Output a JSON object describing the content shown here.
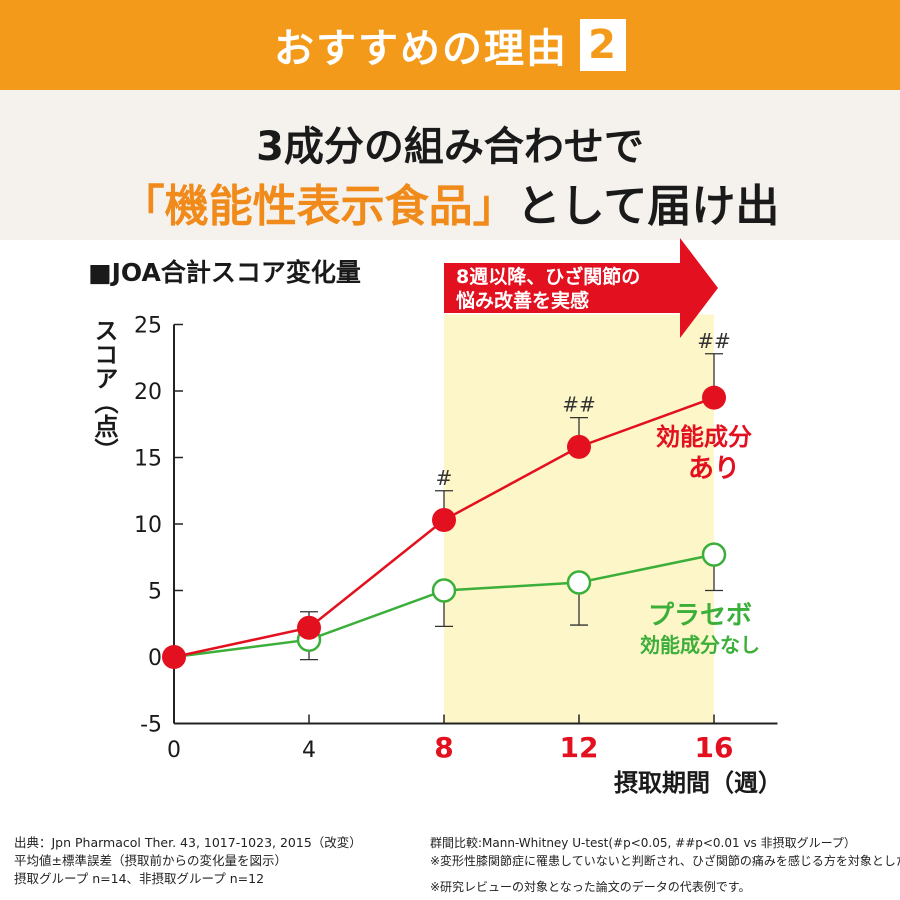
{
  "header": {
    "title": "おすすめの理由",
    "number": "2"
  },
  "headline": {
    "line1": "3成分の組み合わせで",
    "line2_highlight": "「機能性表示食品」",
    "line2_rest": "として届け出"
  },
  "chart_data": {
    "type": "line",
    "title": "■JOA合計スコア変化量",
    "xlabel": "摂取期間（週）",
    "ylabel": "スコア（点）",
    "x": [
      0,
      4,
      8,
      12,
      16
    ],
    "x_ticks": [
      "0",
      "4",
      "8",
      "12",
      "16"
    ],
    "x_highlight_ticks": [
      "8",
      "12",
      "16"
    ],
    "xlim": [
      0,
      18
    ],
    "ylim": [
      -5,
      25
    ],
    "y_ticks": [
      "25",
      "20",
      "15",
      "10",
      "5",
      "0",
      "-5"
    ],
    "series": [
      {
        "name": "効能成分あり",
        "label_line1": "効能成分",
        "label_line2": "あり",
        "color": "#e3101f",
        "values": [
          0,
          2.2,
          10.3,
          15.8,
          19.5
        ],
        "err_upper": [
          0,
          3.4,
          12.5,
          18.0,
          22.8
        ],
        "significance": [
          "",
          "",
          "#",
          "##",
          "##"
        ]
      },
      {
        "name": "プラセボ",
        "label_line1": "プラセボ",
        "label_line2": "効能成分なし",
        "color": "#3caf3a",
        "values": [
          0,
          1.3,
          5.0,
          5.6,
          7.7
        ],
        "err_upper": [
          0,
          2.3,
          5.0,
          5.6,
          7.7
        ],
        "err_lower": [
          0,
          -0.2,
          2.3,
          2.4,
          5.0
        ]
      }
    ],
    "highlight": {
      "x_from": 8,
      "x_to": 16,
      "color": "#fdf6c8",
      "callout_line1": "8週以降、ひざ関節の",
      "callout_line2": "悩み改善を実感",
      "callout_color": "#e3101f"
    }
  },
  "footer": {
    "left": [
      "出典：Jpn Pharmacol Ther. 43, 1017-1023, 2015（改変）",
      "平均値±標準誤差（摂取前からの変化量を図示）",
      "摂取グループ n=14、非摂取グループ n=12"
    ],
    "right": [
      "群間比較:Mann-Whitney U-test(#p<0.05, ##p<0.01 vs 非摂取グループ）",
      "※変形性膝関節症に罹患していないと判断され、ひざ関節の痛みを感じる方を対象とした解析",
      "※研究レビューの対象となった論文のデータの代表例です。"
    ]
  }
}
